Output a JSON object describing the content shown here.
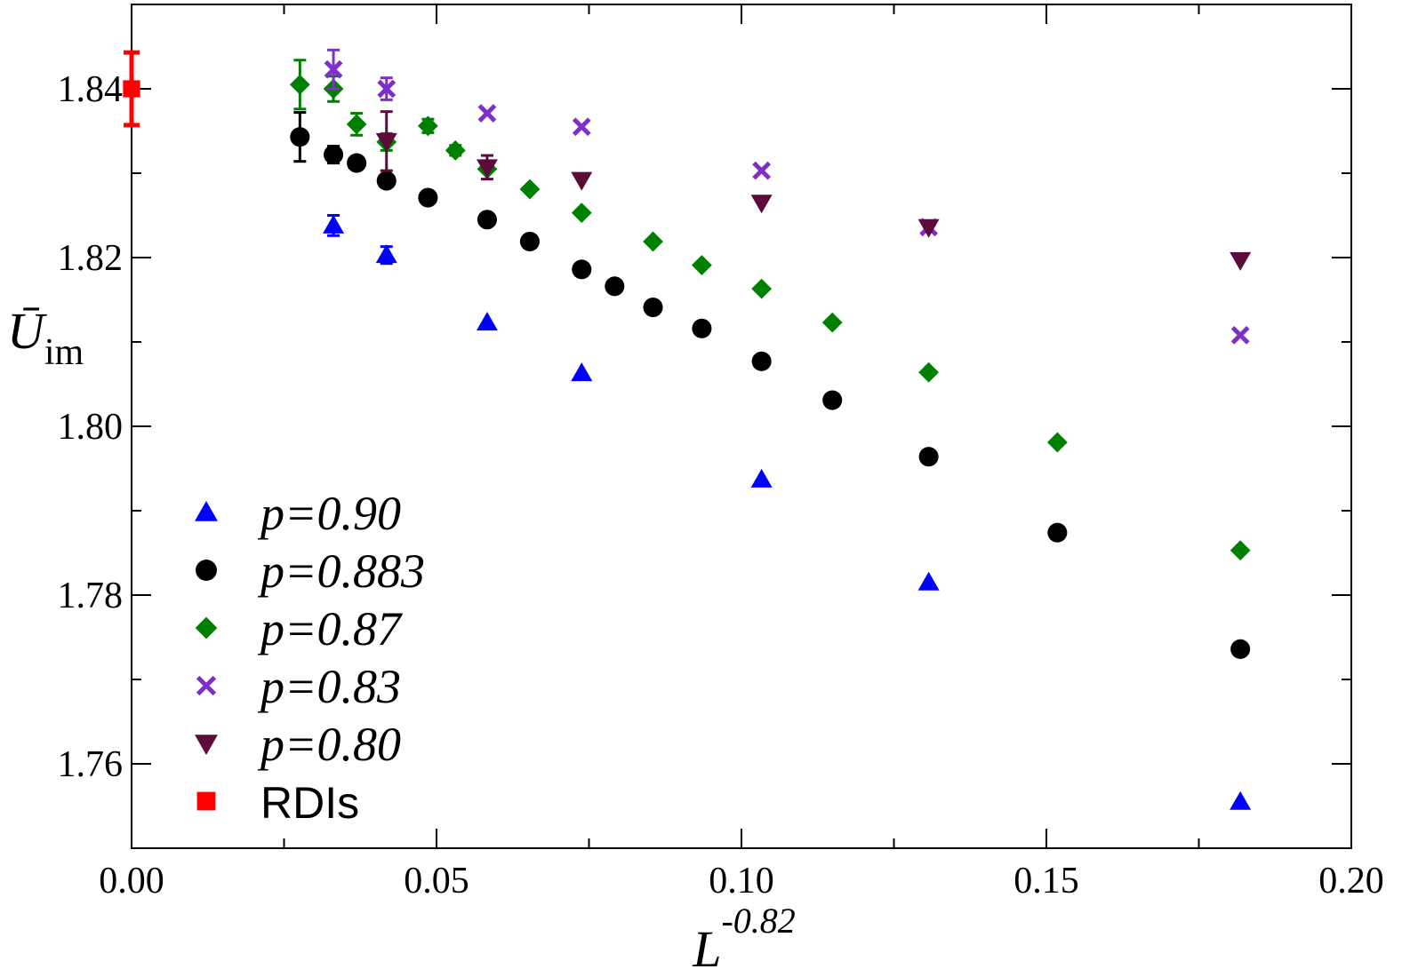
{
  "chart_data": {
    "type": "scatter",
    "title": "",
    "xlabel": {
      "base": "L",
      "exponent": "-0.82"
    },
    "ylabel": {
      "base": "Ū",
      "subscript": "im"
    },
    "xlim": [
      0.0,
      0.2
    ],
    "ylim": [
      1.75,
      1.85
    ],
    "xticks": [
      {
        "value": 0.0,
        "label": "0.00"
      },
      {
        "value": 0.05,
        "label": "0.05"
      },
      {
        "value": 0.1,
        "label": "0.10"
      },
      {
        "value": 0.15,
        "label": "0.15"
      },
      {
        "value": 0.2,
        "label": "0.20"
      }
    ],
    "yticks": [
      {
        "value": 1.76,
        "label": "1.76"
      },
      {
        "value": 1.78,
        "label": "1.78"
      },
      {
        "value": 1.8,
        "label": "1.80"
      },
      {
        "value": 1.82,
        "label": "1.82"
      },
      {
        "value": 1.84,
        "label": "1.84"
      }
    ],
    "grid": false,
    "legend_position": "bottom-left",
    "series": [
      {
        "name": "p=0.90",
        "marker": "triangle-up",
        "color": "#0000ff",
        "points": [
          {
            "x": 0.0331,
            "y": 1.8238,
            "err": 0.0012
          },
          {
            "x": 0.0418,
            "y": 1.8203,
            "err": 0.001
          },
          {
            "x": 0.0583,
            "y": 1.8123,
            "err": 0.0
          },
          {
            "x": 0.0738,
            "y": 1.8063,
            "err": 0.0
          },
          {
            "x": 0.1033,
            "y": 1.7937,
            "err": 0.0
          },
          {
            "x": 0.1307,
            "y": 1.7815,
            "err": 0.0
          },
          {
            "x": 0.1818,
            "y": 1.7555,
            "err": 0.0
          }
        ]
      },
      {
        "name": "p=0.883",
        "marker": "circle",
        "color": "#000000",
        "points": [
          {
            "x": 0.0276,
            "y": 1.8343,
            "err": 0.0029
          },
          {
            "x": 0.0331,
            "y": 1.8322,
            "err": 0.001
          },
          {
            "x": 0.0369,
            "y": 1.8312,
            "err": 0.0006
          },
          {
            "x": 0.0418,
            "y": 1.8291,
            "err": 0.0007
          },
          {
            "x": 0.0486,
            "y": 1.8271,
            "err": 0.0
          },
          {
            "x": 0.0583,
            "y": 1.8245,
            "err": 0.0
          },
          {
            "x": 0.0653,
            "y": 1.8219,
            "err": 0.0
          },
          {
            "x": 0.0738,
            "y": 1.8186,
            "err": 0.0
          },
          {
            "x": 0.0792,
            "y": 1.8166,
            "err": 0.0
          },
          {
            "x": 0.0855,
            "y": 1.8141,
            "err": 0.0
          },
          {
            "x": 0.0935,
            "y": 1.8116,
            "err": 0.0
          },
          {
            "x": 0.1033,
            "y": 1.8077,
            "err": 0.0
          },
          {
            "x": 0.1149,
            "y": 1.8031,
            "err": 0.0
          },
          {
            "x": 0.1307,
            "y": 1.7964,
            "err": 0.0
          },
          {
            "x": 0.1518,
            "y": 1.7874,
            "err": 0.0
          },
          {
            "x": 0.1818,
            "y": 1.7736,
            "err": 0.0
          }
        ]
      },
      {
        "name": "p=0.87",
        "marker": "diamond",
        "color": "#008000",
        "points": [
          {
            "x": 0.0276,
            "y": 1.8405,
            "err": 0.0029
          },
          {
            "x": 0.0331,
            "y": 1.84,
            "err": 0.0015
          },
          {
            "x": 0.0369,
            "y": 1.8358,
            "err": 0.0013
          },
          {
            "x": 0.0418,
            "y": 1.8337,
            "err": 0.001
          },
          {
            "x": 0.0486,
            "y": 1.8356,
            "err": 0.0008
          },
          {
            "x": 0.0531,
            "y": 1.8327,
            "err": 0.0006
          },
          {
            "x": 0.0583,
            "y": 1.8305,
            "err": 0.0
          },
          {
            "x": 0.0653,
            "y": 1.8281,
            "err": 0.0
          },
          {
            "x": 0.0738,
            "y": 1.8253,
            "err": 0.0
          },
          {
            "x": 0.0855,
            "y": 1.8219,
            "err": 0.0
          },
          {
            "x": 0.0935,
            "y": 1.8191,
            "err": 0.0
          },
          {
            "x": 0.1033,
            "y": 1.8163,
            "err": 0.0
          },
          {
            "x": 0.1149,
            "y": 1.8123,
            "err": 0.0
          },
          {
            "x": 0.1307,
            "y": 1.8064,
            "err": 0.0
          },
          {
            "x": 0.1518,
            "y": 1.7981,
            "err": 0.0
          },
          {
            "x": 0.1818,
            "y": 1.7853,
            "err": 0.0
          }
        ]
      },
      {
        "name": "p=0.83",
        "marker": "cross",
        "color": "#7f2fc8",
        "points": [
          {
            "x": 0.0331,
            "y": 1.8423,
            "err": 0.0023
          },
          {
            "x": 0.0418,
            "y": 1.84,
            "err": 0.0013
          },
          {
            "x": 0.0583,
            "y": 1.8371,
            "err": 0.0
          },
          {
            "x": 0.0738,
            "y": 1.8355,
            "err": 0.0
          },
          {
            "x": 0.1033,
            "y": 1.8303,
            "err": 0.0
          },
          {
            "x": 0.1307,
            "y": 1.8236,
            "err": 0.0
          },
          {
            "x": 0.1818,
            "y": 1.8108,
            "err": 0.0
          }
        ]
      },
      {
        "name": "p=0.80",
        "marker": "triangle-down",
        "color": "#5c0b3a",
        "points": [
          {
            "x": 0.0418,
            "y": 1.8338,
            "err": 0.0035
          },
          {
            "x": 0.0583,
            "y": 1.8307,
            "err": 0.0014
          },
          {
            "x": 0.0738,
            "y": 1.8292,
            "err": 0.0
          },
          {
            "x": 0.1033,
            "y": 1.8265,
            "err": 0.0
          },
          {
            "x": 0.1307,
            "y": 1.8236,
            "err": 0.0
          },
          {
            "x": 0.1818,
            "y": 1.8197,
            "err": 0.0
          }
        ]
      },
      {
        "name": "RDIs",
        "marker": "square",
        "color": "#ff0000",
        "points": [
          {
            "x": 0.0,
            "y": 1.84,
            "err": 0.0043
          }
        ]
      }
    ]
  }
}
